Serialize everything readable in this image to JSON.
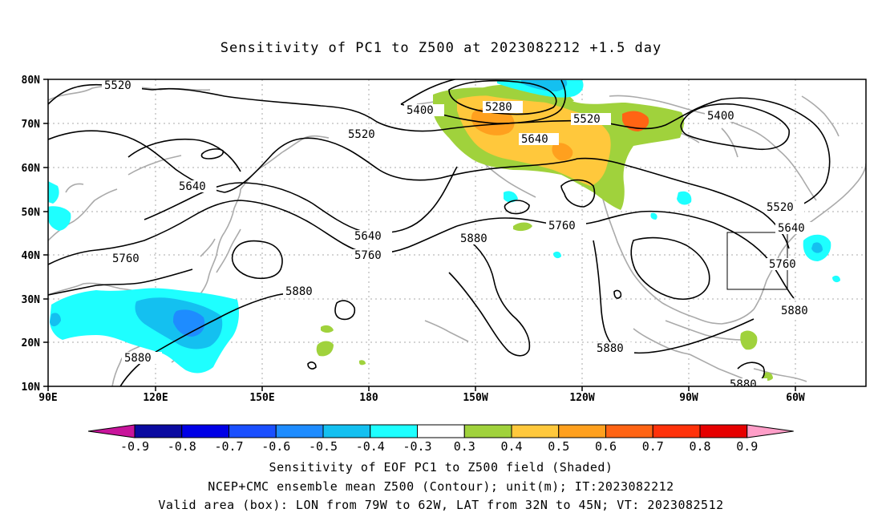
{
  "title": "Sensitivity of PC1 to Z500 at 2023082212 +1.5 day",
  "lat_labels": [
    "80N",
    "70N",
    "60N",
    "50N",
    "40N",
    "30N",
    "20N",
    "10N"
  ],
  "lon_labels": [
    "90E",
    "120E",
    "150E",
    "180",
    "150W",
    "120W",
    "90W",
    "60W"
  ],
  "contour_labels": {
    "c5520_a": "5520",
    "c5400_a": "5400",
    "c5280": "5280",
    "c5520_b": "5520",
    "c5520_c": "5520",
    "c5640_a": "5640",
    "c5400_b": "5400",
    "c5640_b": "5640",
    "c5640_c": "5640",
    "c5760_a": "5760",
    "c5760_b": "5760",
    "c5880_a": "5880",
    "c5760_c": "5760",
    "c5520_d": "5520",
    "c5640_d": "5640",
    "c5760_d": "5760",
    "c5880_b": "5880",
    "c5880_c": "5880",
    "c5880_d": "5880",
    "c5880_e": "5880",
    "c5880_f": "5880"
  },
  "colorbar": {
    "labels": [
      "-0.9",
      "-0.8",
      "-0.7",
      "-0.6",
      "-0.5",
      "-0.4",
      "-0.3",
      "0.3",
      "0.4",
      "0.5",
      "0.6",
      "0.7",
      "0.8",
      "0.9"
    ],
    "colors": [
      "#c8149b",
      "#0a0aa0",
      "#0000e6",
      "#1a4fff",
      "#1e8cff",
      "#14c0f0",
      "#1effff",
      "#ffffff",
      "#a0d23c",
      "#ffc83c",
      "#ffa01e",
      "#ff6414",
      "#ff320a",
      "#e60000",
      "#ff9ec8"
    ]
  },
  "footer": {
    "line1": "Sensitivity of EOF PC1 to Z500 field (Shaded)",
    "line2": "NCEP+CMC ensemble mean Z500 (Contour); unit(m); IT:2023082212",
    "line3": "Valid area (box): LON from 79W to 62W, LAT from 32N to 45N; VT: 2023082512"
  }
}
